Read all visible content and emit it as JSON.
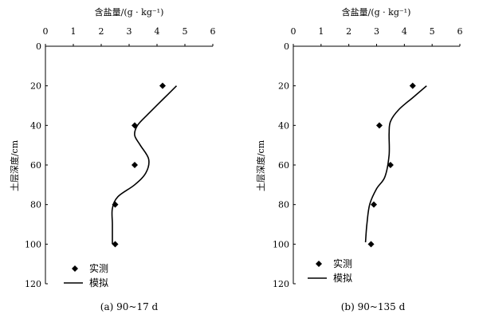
{
  "chart_data": [
    {
      "type": "scatter",
      "caption": "(a) 90~17 d",
      "xlabel": "含盐量/(g · kg⁻¹)",
      "ylabel": "土层深度/cm",
      "xlim": [
        0,
        6
      ],
      "ylim": [
        0,
        120
      ],
      "y_inverted": true,
      "x_axis_position": "top",
      "xticks": [
        "0",
        "1",
        "2",
        "3",
        "4",
        "5",
        "6"
      ],
      "yticks": [
        "0",
        "20",
        "40",
        "60",
        "80",
        "100",
        "120"
      ],
      "legend": {
        "position": "bottom-left",
        "entries": [
          "实测",
          "模拟"
        ]
      },
      "series": [
        {
          "name": "实测",
          "kind": "marker",
          "x": [
            4.2,
            3.2,
            3.2,
            2.5,
            2.5
          ],
          "y": [
            20,
            40,
            60,
            80,
            100
          ]
        },
        {
          "name": "模拟",
          "kind": "line",
          "x": [
            4.7,
            4.2,
            3.7,
            3.3,
            3.2,
            3.4,
            3.7,
            3.6,
            3.2,
            2.6,
            2.4,
            2.4,
            2.4
          ],
          "y": [
            20,
            27,
            34,
            40,
            45,
            50,
            57,
            64,
            70,
            76,
            82,
            90,
            100
          ]
        }
      ]
    },
    {
      "type": "scatter",
      "caption": "(b) 90~135 d",
      "xlabel": "含盐量/(g · kg⁻¹)",
      "ylabel": "土层深度/cm",
      "xlim": [
        0,
        6
      ],
      "ylim": [
        0,
        120
      ],
      "y_inverted": true,
      "x_axis_position": "top",
      "xticks": [
        "0",
        "1",
        "2",
        "3",
        "4",
        "5",
        "6"
      ],
      "yticks": [
        "0",
        "20",
        "40",
        "60",
        "80",
        "100",
        "120"
      ],
      "legend": {
        "position": "bottom-left",
        "entries": [
          "实测",
          "模拟"
        ]
      },
      "series": [
        {
          "name": "实测",
          "kind": "marker",
          "x": [
            4.3,
            3.1,
            3.5,
            2.9,
            2.8
          ],
          "y": [
            20,
            40,
            60,
            80,
            100
          ]
        },
        {
          "name": "模拟",
          "kind": "line",
          "x": [
            4.8,
            4.3,
            3.8,
            3.5,
            3.45,
            3.45,
            3.3,
            3.0,
            2.75,
            2.65,
            2.6
          ],
          "y": [
            20,
            26,
            32,
            38,
            44,
            55,
            66,
            72,
            80,
            90,
            99
          ]
        }
      ]
    }
  ]
}
